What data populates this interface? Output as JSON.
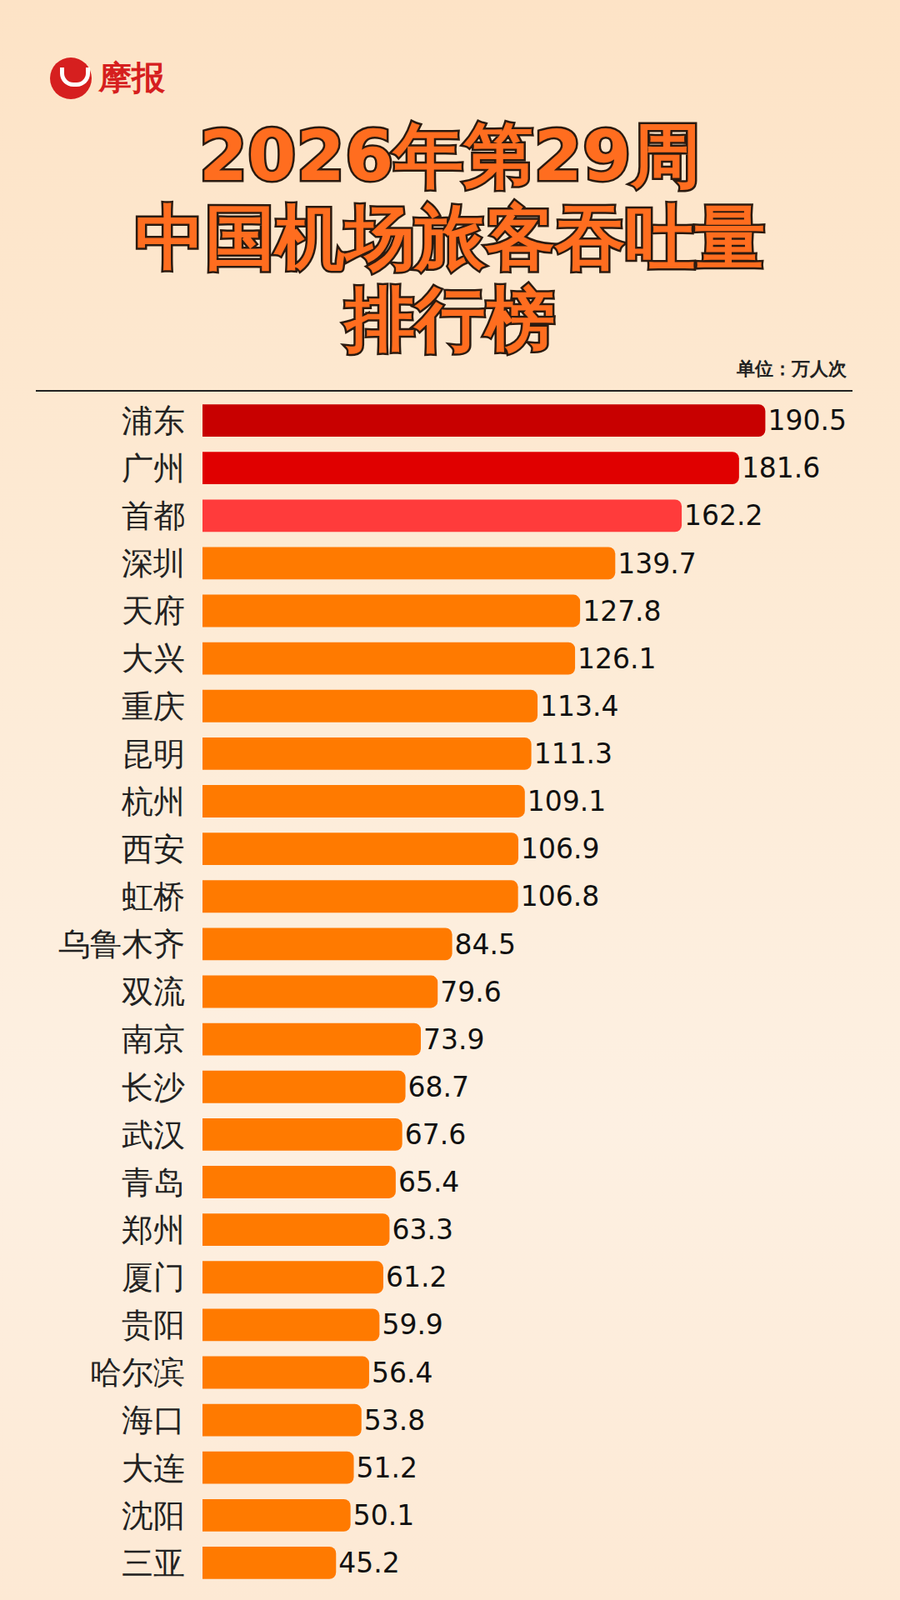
{
  "chart_data": {
    "type": "bar",
    "logo": "摩报",
    "title": "2026年第29周\n中国机场旅客吞吐量\n排行榜",
    "subtitle": "单位：万人次",
    "orientation": "horizontal",
    "categories": [
      "浦东",
      "广州",
      "首都",
      "深圳",
      "天府",
      "大兴",
      "重庆",
      "昆明",
      "杭州",
      "西安",
      "虹桥",
      "乌鲁木齐",
      "双流",
      "南京",
      "长沙",
      "武汉",
      "青岛",
      "郑州",
      "厦门",
      "贵阳",
      "哈尔滨",
      "海口",
      "大连",
      "沈阳",
      "三亚"
    ],
    "values": [
      190.5,
      181.6,
      162.2,
      139.7,
      127.8,
      126.1,
      113.4,
      111.3,
      109.1,
      106.9,
      106.8,
      84.5,
      79.6,
      73.9,
      68.7,
      67.6,
      65.4,
      63.3,
      61.2,
      59.9,
      56.4,
      53.8,
      51.2,
      50.1,
      45.2
    ],
    "colors": [
      "#c80000",
      "#e00000",
      "#ff3b3b",
      "#ff7a00",
      "#ff7a00",
      "#ff7a00",
      "#ff7a00",
      "#ff7a00",
      "#ff7a00",
      "#ff7a00",
      "#ff7a00",
      "#ff7a00",
      "#ff7a00",
      "#ff7a00",
      "#ff7a00",
      "#ff7a00",
      "#ff7a00",
      "#ff7a00",
      "#ff7a00",
      "#ff7a00",
      "#ff7a00",
      "#ff7a00",
      "#ff7a00",
      "#ff7a00",
      "#ff7a00"
    ],
    "xlim": [
      0,
      220
    ],
    "data_labels": true,
    "tick_labels": "y",
    "grid": false
  }
}
